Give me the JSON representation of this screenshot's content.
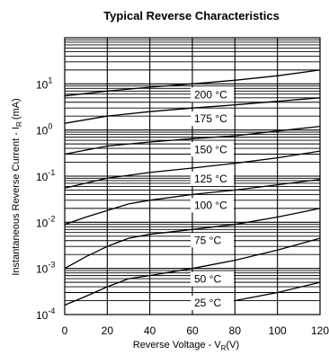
{
  "chart_data": {
    "type": "line",
    "title": "Typical Reverse Characteristics",
    "xlabel": "Reverse Voltage - V",
    "xlabel_sub": "R",
    "xlabel_unit": "(V)",
    "ylabel": "Instantaneous Reverse Current - I",
    "ylabel_sub": "R",
    "ylabel_unit": "(mA)",
    "xlim": [
      0,
      120
    ],
    "ylim": [
      0.0001,
      100
    ],
    "yscale": "log",
    "grid": true,
    "x_ticks": [
      "0",
      "20",
      "40",
      "60",
      "80",
      "100",
      "120"
    ],
    "y_ticks": [
      {
        "base": "10",
        "exp": "1"
      },
      {
        "base": "10",
        "exp": "0"
      },
      {
        "base": "10",
        "exp": "-1"
      },
      {
        "base": "10",
        "exp": "-2"
      },
      {
        "base": "10",
        "exp": "-3"
      },
      {
        "base": "10",
        "exp": "-4"
      }
    ],
    "series": [
      {
        "name": "200 °C",
        "x": [
          0,
          20,
          40,
          60,
          80,
          100,
          120
        ],
        "y": [
          5.5,
          7.0,
          8.5,
          10.0,
          12.0,
          15.0,
          20.0
        ]
      },
      {
        "name": "175 °C",
        "x": [
          0,
          20,
          40,
          60,
          80,
          100,
          120
        ],
        "y": [
          1.4,
          2.0,
          2.5,
          3.0,
          3.5,
          4.2,
          5.0
        ]
      },
      {
        "name": "150 °C",
        "x": [
          0,
          20,
          40,
          60,
          80,
          100,
          120
        ],
        "y": [
          0.3,
          0.45,
          0.55,
          0.65,
          0.75,
          0.95,
          1.2
        ]
      },
      {
        "name": "125 °C",
        "x": [
          0,
          20,
          40,
          60,
          80,
          100,
          120
        ],
        "y": [
          0.055,
          0.09,
          0.12,
          0.15,
          0.19,
          0.25,
          0.35
        ]
      },
      {
        "name": "100 °C",
        "x": [
          0,
          10,
          20,
          30,
          40,
          60,
          80,
          100,
          120
        ],
        "y": [
          0.009,
          0.013,
          0.018,
          0.025,
          0.03,
          0.04,
          0.05,
          0.065,
          0.085
        ]
      },
      {
        "name": "75 °C",
        "x": [
          0,
          10,
          20,
          30,
          40,
          60,
          80,
          100,
          120
        ],
        "y": [
          0.001,
          0.0018,
          0.003,
          0.0045,
          0.0055,
          0.007,
          0.009,
          0.013,
          0.02
        ]
      },
      {
        "name": "50 °C",
        "x": [
          0,
          10,
          20,
          30,
          40,
          60,
          80,
          100,
          120
        ],
        "y": [
          0.00016,
          0.00025,
          0.0004,
          0.0006,
          0.0007,
          0.001,
          0.0015,
          0.0025,
          0.0045
        ]
      },
      {
        "name": "25 °C",
        "x": [
          60,
          80,
          100,
          120
        ],
        "y": [
          0.00015,
          0.0002,
          0.0003,
          0.0005
        ]
      }
    ]
  }
}
